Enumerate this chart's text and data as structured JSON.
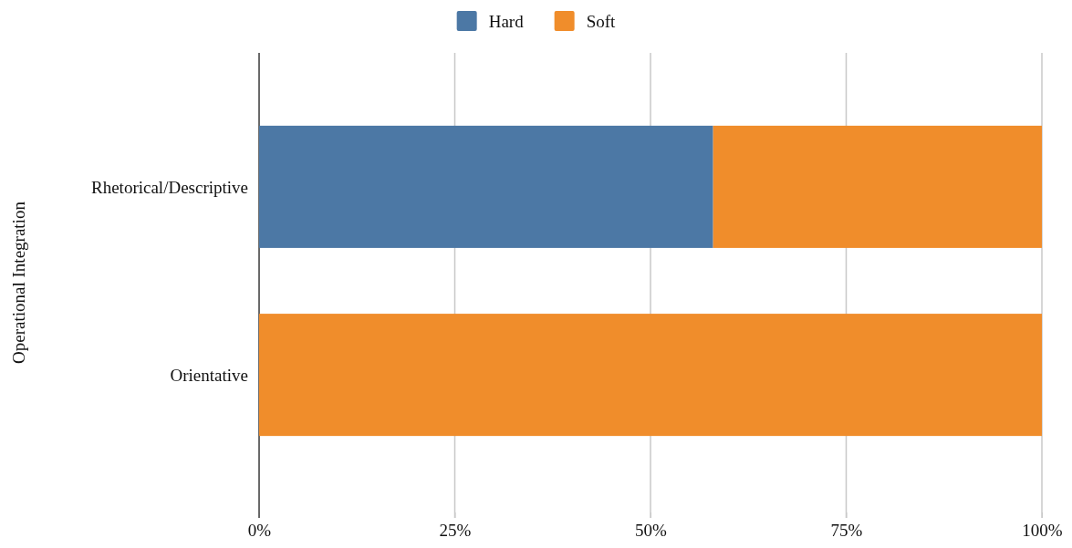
{
  "chart_data": {
    "type": "bar",
    "orientation": "horizontal",
    "stacked": true,
    "ylabel": "Operational Integration",
    "categories": [
      "Rhetorical/Descriptive",
      "Orientative"
    ],
    "series": [
      {
        "name": "Hard",
        "color": "#4c78a5",
        "values": [
          58,
          0
        ]
      },
      {
        "name": "Soft",
        "color": "#f08d2b",
        "values": [
          42,
          100
        ]
      }
    ],
    "xlim": [
      0,
      100
    ],
    "xticks": [
      {
        "value": 0,
        "label": "0%"
      },
      {
        "value": 25,
        "label": "25%"
      },
      {
        "value": 50,
        "label": "50%"
      },
      {
        "value": 75,
        "label": "75%"
      },
      {
        "value": 100,
        "label": "100%"
      }
    ],
    "grid": "x",
    "legend": "top"
  }
}
